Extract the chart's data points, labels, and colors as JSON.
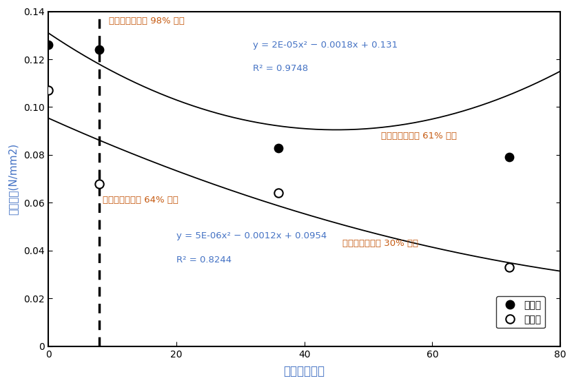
{
  "title": "",
  "xlabel": "내습성싸이클",
  "ylabel": "부착강도(N/mm2)",
  "xlim": [
    0,
    80
  ],
  "ylim": [
    0,
    0.14
  ],
  "yticks": [
    0,
    0.02,
    0.04,
    0.06,
    0.08,
    0.1,
    0.12,
    0.14
  ],
  "xticks": [
    0,
    20,
    40,
    60,
    80
  ],
  "gypsum_points_x": [
    0,
    8,
    36,
    72
  ],
  "gypsum_points_y": [
    0.126,
    0.124,
    0.083,
    0.079
  ],
  "vermiculite_points_x": [
    0,
    8,
    36,
    72
  ],
  "vermiculite_points_y": [
    0.107,
    0.068,
    0.064,
    0.033
  ],
  "gypsum_eq": "y = 2E-05x² − 0.0018x + 0.131",
  "gypsum_r2": "R² = 0.9748",
  "vermiculite_eq": "y = 5E-06x² − 0.0012x + 0.0954",
  "vermiculite_r2": "R² = 0.8244",
  "gypsum_eq_coeffs": [
    2e-05,
    -0.0018,
    0.131
  ],
  "vermiculite_eq_coeffs": [
    5e-06,
    -0.0012,
    0.0954
  ],
  "vline_x": 8,
  "annotation_98": "초기부착강도의 98% 수준",
  "annotation_64": "초기부착강도의 64% 수준",
  "annotation_61": "초기부착강도의 61% 수준",
  "annotation_30": "초기부착강도의 30% 수준",
  "legend_gypsum": "석고계",
  "legend_vermiculite": "질석계",
  "curve_color": "#000000",
  "eq_color": "#4472c4",
  "annotation_color": "#c55a11",
  "vline_color": "#000000",
  "bg_color": "#ffffff",
  "figsize": [
    8.33,
    5.59
  ],
  "dpi": 100
}
